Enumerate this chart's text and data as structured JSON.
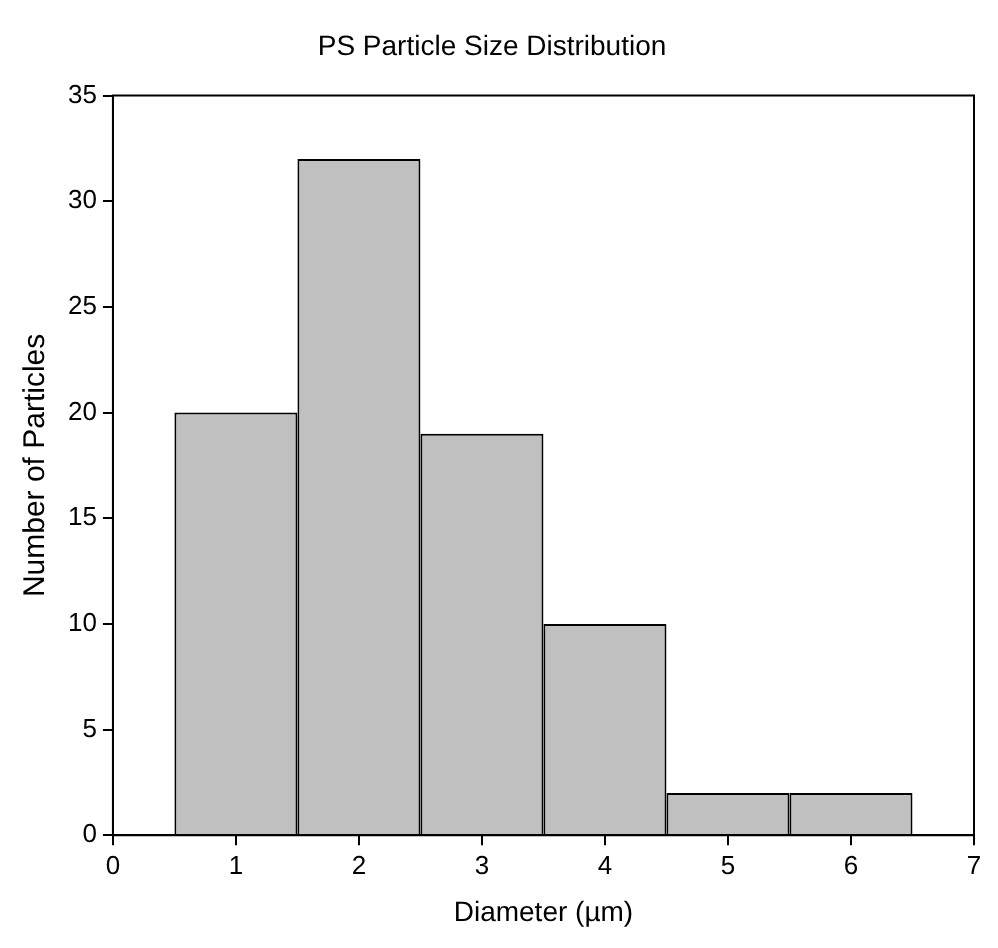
{
  "chart_data": {
    "type": "histogram",
    "title": "PS Particle Size Distribution",
    "xlabel": "Diameter (µm)",
    "ylabel": "Number of Particles",
    "bins": [
      0.5,
      1.5,
      2.5,
      3.5,
      4.5,
      5.5,
      6.5
    ],
    "values": [
      20,
      32,
      19,
      10,
      2,
      2
    ],
    "color": "#c0c0c0",
    "xlim": [
      0,
      7
    ],
    "xticks": [
      0,
      1,
      2,
      3,
      4,
      5,
      6,
      7
    ],
    "ylim": [
      0,
      35
    ],
    "yticks": [
      0,
      5,
      10,
      15,
      20,
      25,
      30,
      35
    ],
    "grid": false
  }
}
